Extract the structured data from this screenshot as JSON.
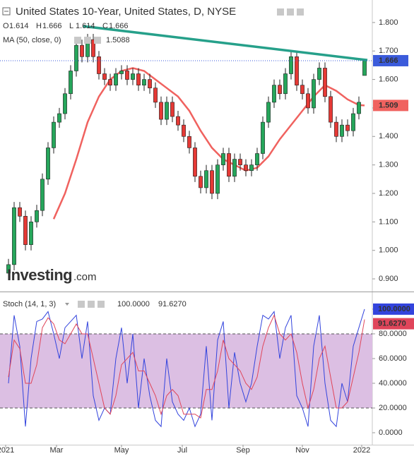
{
  "chart_data": [
    {
      "type": "candlestick",
      "title": "United States 10-Year, United States, D, NYSE",
      "ohlc_legend": [
        {
          "letter": "O",
          "value": 1.614
        },
        {
          "letter": "H",
          "value": 1.666
        },
        {
          "letter": "L",
          "value": 1.614
        },
        {
          "letter": "C",
          "value": 1.666
        }
      ],
      "logo": [
        "Investing",
        ".com"
      ],
      "x": [
        2,
        6,
        10,
        14,
        18,
        22,
        26,
        30,
        34,
        38,
        42,
        46,
        50,
        54,
        58,
        62,
        66,
        70,
        74,
        78,
        82,
        86,
        90,
        94,
        98,
        102,
        106,
        110,
        114,
        118,
        122,
        126,
        130,
        134,
        138,
        142,
        146,
        150,
        154,
        158,
        162,
        166,
        170,
        174,
        178,
        182,
        186,
        190,
        194,
        198,
        202,
        206,
        210,
        214,
        218,
        222,
        226,
        230,
        234,
        238,
        242,
        246,
        250,
        254
      ],
      "open": [
        0.92,
        0.95,
        1.15,
        1.12,
        1.02,
        1.1,
        1.14,
        1.25,
        1.36,
        1.45,
        1.48,
        1.55,
        1.63,
        1.72,
        1.68,
        1.74,
        1.68,
        1.62,
        1.6,
        1.58,
        1.62,
        1.63,
        1.6,
        1.62,
        1.58,
        1.6,
        1.57,
        1.52,
        1.46,
        1.52,
        1.47,
        1.44,
        1.4,
        1.36,
        1.26,
        1.22,
        1.28,
        1.2,
        1.3,
        1.34,
        1.26,
        1.32,
        1.3,
        1.28,
        1.3,
        1.34,
        1.45,
        1.52,
        1.58,
        1.55,
        1.62,
        1.68,
        1.58,
        1.55,
        1.5,
        1.6,
        1.64,
        1.54,
        1.45,
        1.4,
        1.44,
        1.42,
        1.48,
        1.614
      ],
      "high": [
        0.97,
        1.17,
        1.17,
        1.14,
        1.12,
        1.16,
        1.27,
        1.38,
        1.47,
        1.5,
        1.57,
        1.65,
        1.74,
        1.74,
        1.76,
        1.76,
        1.7,
        1.64,
        1.62,
        1.64,
        1.65,
        1.65,
        1.64,
        1.64,
        1.62,
        1.62,
        1.59,
        1.54,
        1.54,
        1.54,
        1.49,
        1.46,
        1.42,
        1.38,
        1.28,
        1.3,
        1.3,
        1.32,
        1.36,
        1.36,
        1.34,
        1.34,
        1.32,
        1.32,
        1.36,
        1.47,
        1.54,
        1.6,
        1.6,
        1.64,
        1.7,
        1.7,
        1.6,
        1.57,
        1.62,
        1.66,
        1.66,
        1.56,
        1.47,
        1.46,
        1.46,
        1.5,
        1.54,
        1.666
      ],
      "low": [
        0.9,
        0.93,
        1.1,
        1.0,
        1.0,
        1.08,
        1.12,
        1.23,
        1.34,
        1.43,
        1.46,
        1.53,
        1.61,
        1.66,
        1.66,
        1.66,
        1.6,
        1.58,
        1.56,
        1.56,
        1.6,
        1.58,
        1.58,
        1.56,
        1.56,
        1.55,
        1.5,
        1.44,
        1.44,
        1.45,
        1.42,
        1.38,
        1.34,
        1.24,
        1.2,
        1.2,
        1.18,
        1.18,
        1.28,
        1.24,
        1.24,
        1.28,
        1.26,
        1.26,
        1.28,
        1.32,
        1.43,
        1.5,
        1.53,
        1.53,
        1.6,
        1.56,
        1.53,
        1.48,
        1.48,
        1.58,
        1.52,
        1.43,
        1.38,
        1.38,
        1.4,
        1.4,
        1.46,
        1.614
      ],
      "close": [
        0.95,
        1.15,
        1.12,
        1.02,
        1.1,
        1.14,
        1.25,
        1.36,
        1.45,
        1.48,
        1.55,
        1.63,
        1.72,
        1.68,
        1.74,
        1.68,
        1.62,
        1.6,
        1.58,
        1.62,
        1.63,
        1.6,
        1.62,
        1.58,
        1.6,
        1.57,
        1.52,
        1.46,
        1.52,
        1.47,
        1.44,
        1.4,
        1.36,
        1.26,
        1.22,
        1.28,
        1.2,
        1.3,
        1.34,
        1.26,
        1.32,
        1.3,
        1.28,
        1.3,
        1.34,
        1.45,
        1.52,
        1.58,
        1.55,
        1.62,
        1.68,
        1.58,
        1.55,
        1.5,
        1.6,
        1.64,
        1.54,
        1.45,
        1.4,
        1.44,
        1.42,
        1.48,
        1.52,
        1.666
      ],
      "up_color": "#26a65b",
      "down_color": "#e53935",
      "ma": {
        "name": "MA (50, close, 0)",
        "value": 1.5088,
        "axis_label": "1.509",
        "color": "#f0625f",
        "x": [
          34,
          42,
          50,
          58,
          66,
          74,
          82,
          90,
          98,
          106,
          114,
          122,
          130,
          138,
          146,
          154,
          162,
          170,
          178,
          186,
          194,
          202,
          210,
          218,
          226,
          234,
          242,
          250,
          254
        ],
        "values": [
          1.11,
          1.2,
          1.32,
          1.45,
          1.54,
          1.6,
          1.63,
          1.64,
          1.63,
          1.6,
          1.57,
          1.54,
          1.49,
          1.42,
          1.36,
          1.32,
          1.3,
          1.28,
          1.29,
          1.33,
          1.39,
          1.44,
          1.49,
          1.54,
          1.58,
          1.56,
          1.53,
          1.51,
          1.5088
        ]
      },
      "trendline": {
        "x": [
          55,
          256
        ],
        "y": [
          1.787,
          1.668
        ],
        "color": "#26a08a"
      },
      "last_line_color": "#3b5bdb",
      "xlim": [
        -4,
        259.5
      ],
      "ylim": [
        0.858,
        1.879
      ],
      "yticks": [
        {
          "value": 1.8,
          "label": "1.800"
        },
        {
          "value": 1.7,
          "label": "1.700"
        },
        {
          "value": 1.6,
          "label": "1.600"
        },
        {
          "value": 1.5,
          "label": "1.500"
        },
        {
          "value": 1.4,
          "label": "1.400"
        },
        {
          "value": 1.3,
          "label": "1.300"
        },
        {
          "value": 1.2,
          "label": "1.200"
        },
        {
          "value": 1.1,
          "label": "1.100"
        },
        {
          "value": 1.0,
          "label": "1.000"
        },
        {
          "value": 0.9,
          "label": "0.900"
        }
      ]
    },
    {
      "type": "line",
      "title": "Stoch (14, 1, 3)",
      "series": [
        {
          "name": {
            "value": 100,
            "label": "100.0000"
          },
          "color": "#3344dd",
          "values": [
            40,
            95,
            70,
            5,
            60,
            90,
            92,
            98,
            80,
            60,
            85,
            90,
            95,
            60,
            90,
            30,
            10,
            20,
            15,
            60,
            85,
            40,
            80,
            20,
            60,
            30,
            10,
            5,
            60,
            25,
            15,
            10,
            20,
            5,
            15,
            70,
            10,
            75,
            90,
            20,
            65,
            40,
            25,
            40,
            70,
            95,
            92,
            98,
            60,
            85,
            95,
            30,
            20,
            5,
            70,
            95,
            40,
            10,
            5,
            40,
            25,
            70,
            85,
            100
          ]
        },
        {
          "name": {
            "value": 91.627,
            "label": "91.6270"
          },
          "color": "#e0455a",
          "values": [
            45,
            75,
            68,
            40,
            40,
            55,
            85,
            93,
            88,
            75,
            72,
            80,
            88,
            80,
            80,
            60,
            40,
            20,
            15,
            30,
            55,
            60,
            65,
            50,
            50,
            40,
            30,
            15,
            30,
            35,
            30,
            15,
            15,
            15,
            12,
            35,
            35,
            50,
            75,
            60,
            55,
            50,
            40,
            35,
            45,
            70,
            85,
            95,
            80,
            75,
            80,
            65,
            40,
            20,
            35,
            60,
            70,
            45,
            20,
            20,
            25,
            45,
            65,
            91.627
          ]
        }
      ],
      "band": [
        20,
        80
      ],
      "band_color": "#dcbfe3",
      "ylim": [
        -9.7,
        113.1
      ],
      "yticks": [
        {
          "value": 100,
          "label": "100.0000"
        },
        {
          "value": 80,
          "label": "80.0000"
        },
        {
          "value": 60,
          "label": "60.0000"
        },
        {
          "value": 40,
          "label": "40.0000"
        },
        {
          "value": 20,
          "label": "20.0000"
        },
        {
          "value": 0,
          "label": "0.0000"
        }
      ],
      "xticks": [
        {
          "value": 0,
          "label": "2021"
        },
        {
          "value": 36,
          "label": "Mar"
        },
        {
          "value": 82,
          "label": "May"
        },
        {
          "value": 125,
          "label": "Jul"
        },
        {
          "value": 168,
          "label": "Sep"
        },
        {
          "value": 210,
          "label": "Nov"
        },
        {
          "value": 252,
          "label": "2022"
        }
      ]
    }
  ]
}
